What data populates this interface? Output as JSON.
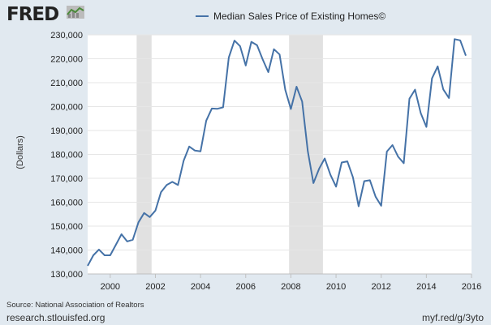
{
  "header": {
    "logo_text": "FRED",
    "logo_icon": "chart-line-icon"
  },
  "footer": {
    "source": "Source: National Association of Realtors",
    "site": "research.stlouisfed.org",
    "shortlink": "myf.red/g/3yto"
  },
  "colors": {
    "background": "#e1e9f0",
    "plot_background": "#ffffff",
    "series": "#4572a7",
    "recession": "#e1e1e1",
    "grid": "#e6e6e6"
  },
  "chart_data": {
    "type": "line",
    "title": "",
    "xlabel": "",
    "ylabel": "(Dollars)",
    "xlim": [
      1999.0,
      2016.0
    ],
    "ylim": [
      130000,
      230000
    ],
    "x_ticks": [
      2000,
      2002,
      2004,
      2006,
      2008,
      2010,
      2012,
      2014,
      2016
    ],
    "y_ticks": [
      130000,
      140000,
      150000,
      160000,
      170000,
      180000,
      190000,
      200000,
      210000,
      220000,
      230000
    ],
    "y_tick_labels": [
      "130,000",
      "140,000",
      "150,000",
      "160,000",
      "170,000",
      "180,000",
      "190,000",
      "200,000",
      "210,000",
      "220,000",
      "230,000"
    ],
    "x_tick_labels": [
      "2000",
      "2002",
      "2004",
      "2006",
      "2008",
      "2010",
      "2012",
      "2014",
      "2016"
    ],
    "grid": true,
    "legend": "top-center",
    "recessions": [
      [
        2001.17,
        2001.83
      ],
      [
        2007.92,
        2009.42
      ]
    ],
    "series": [
      {
        "name": "Median Sales Price of Existing Homes©",
        "x": [
          "1999-Q1",
          "1999-Q2",
          "1999-Q3",
          "1999-Q4",
          "2000-Q1",
          "2000-Q2",
          "2000-Q3",
          "2000-Q4",
          "2001-Q1",
          "2001-Q2",
          "2001-Q3",
          "2001-Q4",
          "2002-Q1",
          "2002-Q2",
          "2002-Q3",
          "2002-Q4",
          "2003-Q1",
          "2003-Q2",
          "2003-Q3",
          "2003-Q4",
          "2004-Q1",
          "2004-Q2",
          "2004-Q3",
          "2004-Q4",
          "2005-Q1",
          "2005-Q2",
          "2005-Q3",
          "2005-Q4",
          "2006-Q1",
          "2006-Q2",
          "2006-Q3",
          "2006-Q4",
          "2007-Q1",
          "2007-Q2",
          "2007-Q3",
          "2007-Q4",
          "2008-Q1",
          "2008-Q2",
          "2008-Q3",
          "2008-Q4",
          "2009-Q1",
          "2009-Q2",
          "2009-Q3",
          "2009-Q4",
          "2010-Q1",
          "2010-Q2",
          "2010-Q3",
          "2010-Q4",
          "2011-Q1",
          "2011-Q2",
          "2011-Q3",
          "2011-Q4",
          "2012-Q1",
          "2012-Q2",
          "2012-Q3",
          "2012-Q4",
          "2013-Q1",
          "2013-Q2",
          "2013-Q3",
          "2013-Q4",
          "2014-Q1",
          "2014-Q2",
          "2014-Q3",
          "2014-Q4",
          "2015-Q1",
          "2015-Q2",
          "2015-Q3",
          "2015-Q4"
        ],
        "values": [
          133400,
          137800,
          140200,
          137800,
          137800,
          142200,
          146600,
          143600,
          144300,
          151600,
          155500,
          153800,
          156500,
          164200,
          167200,
          168500,
          167200,
          177400,
          183300,
          181600,
          181300,
          194100,
          199200,
          199100,
          199700,
          220500,
          227600,
          225300,
          217200,
          227100,
          225700,
          219800,
          214400,
          224000,
          221800,
          207000,
          199000,
          208300,
          202100,
          181300,
          168000,
          174000,
          178300,
          171500,
          166500,
          176600,
          177100,
          170400,
          158300,
          168800,
          169200,
          162300,
          158500,
          181200,
          183900,
          179000,
          176300,
          203300,
          207100,
          197300,
          191500,
          211800,
          216800,
          207200,
          203600,
          228200,
          227700,
          221300
        ]
      }
    ]
  }
}
